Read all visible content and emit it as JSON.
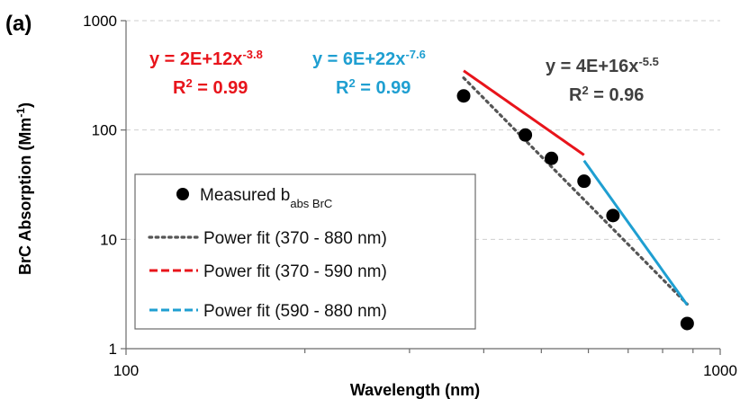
{
  "chart_data": {
    "type": "scatter",
    "panel_label": "(a)",
    "xlabel": "Wavelength (nm)",
    "ylabel_main": "BrC Absorption (Mm",
    "ylabel_sup": "-1",
    "ylabel_end": ")",
    "x_scale": "log",
    "y_scale": "log",
    "xlim": [
      100,
      1000
    ],
    "ylim": [
      1,
      1000
    ],
    "x_ticks": [
      {
        "value": 100,
        "label": "100"
      },
      {
        "value": 1000,
        "label": "1000"
      }
    ],
    "y_ticks": [
      {
        "value": 1,
        "label": "1"
      },
      {
        "value": 10,
        "label": "10"
      },
      {
        "value": 100,
        "label": "100"
      },
      {
        "value": 1000,
        "label": "1000"
      }
    ],
    "grid": "horizontal dashed",
    "legend_position": "lower-left",
    "series": [
      {
        "name": "Measured b",
        "name_sub": "abs BrC",
        "kind": "markers",
        "color": "#000000",
        "x": [
          370,
          470,
          520,
          590,
          660,
          880
        ],
        "y": [
          205,
          90,
          55,
          34,
          16.5,
          1.7
        ]
      },
      {
        "name": "Power fit (370 - 880 nm)",
        "kind": "dotted",
        "color": "#555555",
        "a": 4e+16,
        "b": -5.5,
        "x_range": [
          370,
          880
        ]
      },
      {
        "name": "Power fit (370 - 590 nm)",
        "kind": "dashed",
        "color": "#e8141b",
        "a": 2000000000000.0,
        "b": -3.8,
        "x_range": [
          370,
          590
        ]
      },
      {
        "name": "Power fit (590 - 880 nm)",
        "kind": "dashed",
        "color": "#1f9fd1",
        "a": 6e+22,
        "b": -7.6,
        "x_range": [
          590,
          880
        ]
      }
    ],
    "annotations": [
      {
        "name": "equation-red",
        "color": "#e8141b",
        "eq_base": "y = 2E+12x",
        "eq_exp": "-3.8",
        "r2_label": "R",
        "r2_sup": "2",
        "r2_value": " = 0.99"
      },
      {
        "name": "equation-blue",
        "color": "#1f9fd1",
        "eq_base": "y = 6E+22x",
        "eq_exp": "-7.6",
        "r2_label": "R",
        "r2_sup": "2",
        "r2_value": " = 0.99"
      },
      {
        "name": "equation-gray",
        "color": "#404040",
        "eq_base": "y = 4E+16x",
        "eq_exp": "-5.5",
        "r2_label": "R",
        "r2_sup": "2",
        "r2_value": " = 0.96"
      }
    ]
  }
}
